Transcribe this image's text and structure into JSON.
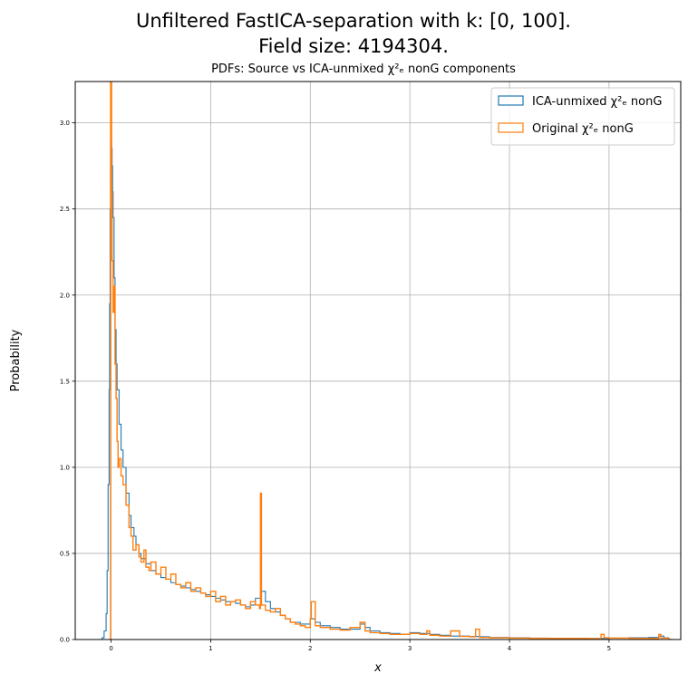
{
  "figure": {
    "title_line1": "Unfiltered FastICA-separation with k: [0, 100].",
    "title_line2": "Field size: 4194304."
  },
  "chart_data": {
    "type": "histogram-step",
    "title": "PDFs: Source vs ICA-unmixed χ²ₑ nonG components",
    "xlabel": "x",
    "ylabel": "Probability",
    "xlim": [
      -0.36,
      5.72
    ],
    "ylim": [
      0.0,
      3.24
    ],
    "xticks": [
      0,
      1,
      2,
      3,
      4,
      5
    ],
    "yticks": [
      0.0,
      0.5,
      1.0,
      1.5,
      2.0,
      2.5,
      3.0
    ],
    "xtick_labels": [
      "0",
      "1",
      "2",
      "3",
      "4",
      "5"
    ],
    "ytick_labels": [
      "0.0",
      "0.5",
      "1.0",
      "1.5",
      "2.0",
      "2.5",
      "3.0"
    ],
    "grid": true,
    "legend_position": "top-right",
    "series": [
      {
        "name": "ICA-unmixed χ²ₑ nonG",
        "color": "#1f77b4",
        "x": [
          -0.12,
          -0.09,
          -0.07,
          -0.05,
          -0.04,
          -0.03,
          -0.02,
          -0.015,
          -0.01,
          -0.005,
          0.0,
          0.005,
          0.01,
          0.015,
          0.02,
          0.03,
          0.04,
          0.05,
          0.06,
          0.08,
          0.1,
          0.12,
          0.15,
          0.18,
          0.2,
          0.23,
          0.25,
          0.28,
          0.3,
          0.35,
          0.4,
          0.45,
          0.5,
          0.55,
          0.6,
          0.65,
          0.7,
          0.75,
          0.8,
          0.85,
          0.9,
          0.95,
          1.0,
          1.05,
          1.1,
          1.15,
          1.2,
          1.25,
          1.3,
          1.35,
          1.4,
          1.45,
          1.5,
          1.55,
          1.6,
          1.65,
          1.7,
          1.75,
          1.8,
          1.9,
          2.0,
          2.05,
          2.1,
          2.2,
          2.3,
          2.4,
          2.5,
          2.55,
          2.6,
          2.7,
          2.8,
          2.9,
          3.0,
          3.1,
          3.2,
          3.3,
          3.4,
          3.5,
          3.6,
          3.7,
          3.8,
          4.0,
          4.2,
          4.4,
          4.6,
          4.8,
          5.0,
          5.2,
          5.4,
          5.5,
          5.55,
          5.6
        ],
        "values": [
          0.0,
          0.01,
          0.05,
          0.15,
          0.4,
          0.9,
          1.45,
          1.95,
          2.5,
          2.85,
          2.9,
          2.85,
          2.75,
          2.6,
          2.45,
          2.1,
          1.8,
          1.6,
          1.45,
          1.25,
          1.1,
          1.0,
          0.85,
          0.72,
          0.65,
          0.6,
          0.55,
          0.5,
          0.47,
          0.44,
          0.4,
          0.38,
          0.36,
          0.35,
          0.33,
          0.32,
          0.31,
          0.3,
          0.29,
          0.28,
          0.27,
          0.26,
          0.25,
          0.24,
          0.23,
          0.22,
          0.22,
          0.21,
          0.2,
          0.19,
          0.2,
          0.24,
          0.28,
          0.22,
          0.18,
          0.16,
          0.14,
          0.12,
          0.1,
          0.09,
          0.12,
          0.1,
          0.08,
          0.07,
          0.06,
          0.06,
          0.09,
          0.07,
          0.05,
          0.04,
          0.035,
          0.03,
          0.04,
          0.035,
          0.03,
          0.025,
          0.02,
          0.02,
          0.018,
          0.016,
          0.012,
          0.01,
          0.008,
          0.007,
          0.007,
          0.006,
          0.008,
          0.01,
          0.012,
          0.02,
          0.01,
          0.0
        ]
      },
      {
        "name": "Original χ²ₑ nonG",
        "color": "#ff7f0e",
        "x": [
          -0.02,
          -0.015,
          -0.01,
          -0.005,
          0.0,
          0.005,
          0.01,
          0.02,
          0.03,
          0.04,
          0.05,
          0.06,
          0.07,
          0.08,
          0.1,
          0.12,
          0.15,
          0.18,
          0.2,
          0.22,
          0.25,
          0.28,
          0.3,
          0.33,
          0.35,
          0.38,
          0.4,
          0.45,
          0.5,
          0.55,
          0.6,
          0.65,
          0.7,
          0.75,
          0.8,
          0.85,
          0.9,
          0.95,
          1.0,
          1.05,
          1.1,
          1.15,
          1.2,
          1.25,
          1.3,
          1.35,
          1.4,
          1.45,
          1.49,
          1.5,
          1.51,
          1.55,
          1.6,
          1.65,
          1.7,
          1.75,
          1.8,
          1.85,
          1.9,
          1.95,
          2.0,
          2.01,
          2.05,
          2.1,
          2.2,
          2.3,
          2.4,
          2.5,
          2.55,
          2.6,
          2.7,
          2.8,
          2.9,
          3.0,
          3.1,
          3.17,
          3.2,
          3.3,
          3.4,
          3.41,
          3.5,
          3.6,
          3.66,
          3.7,
          3.8,
          4.0,
          4.2,
          4.4,
          4.6,
          4.8,
          4.92,
          4.95,
          5.0,
          5.2,
          5.4,
          5.5,
          5.52,
          5.6
        ],
        "values": [
          0.0,
          0.0,
          0.0,
          3.24,
          3.24,
          2.6,
          2.2,
          1.9,
          2.05,
          1.6,
          1.4,
          1.15,
          1.0,
          1.05,
          0.95,
          0.9,
          0.78,
          0.65,
          0.6,
          0.52,
          0.55,
          0.48,
          0.45,
          0.52,
          0.42,
          0.4,
          0.45,
          0.38,
          0.42,
          0.35,
          0.38,
          0.32,
          0.3,
          0.33,
          0.28,
          0.3,
          0.27,
          0.25,
          0.28,
          0.22,
          0.25,
          0.2,
          0.22,
          0.23,
          0.2,
          0.18,
          0.22,
          0.2,
          0.18,
          0.85,
          0.2,
          0.17,
          0.16,
          0.18,
          0.14,
          0.12,
          0.1,
          0.09,
          0.08,
          0.07,
          0.12,
          0.22,
          0.08,
          0.07,
          0.06,
          0.055,
          0.07,
          0.1,
          0.05,
          0.04,
          0.035,
          0.03,
          0.03,
          0.035,
          0.03,
          0.05,
          0.025,
          0.02,
          0.02,
          0.05,
          0.018,
          0.016,
          0.06,
          0.012,
          0.01,
          0.008,
          0.007,
          0.006,
          0.006,
          0.005,
          0.03,
          0.01,
          0.008,
          0.007,
          0.006,
          0.03,
          0.008,
          0.0
        ]
      }
    ]
  }
}
